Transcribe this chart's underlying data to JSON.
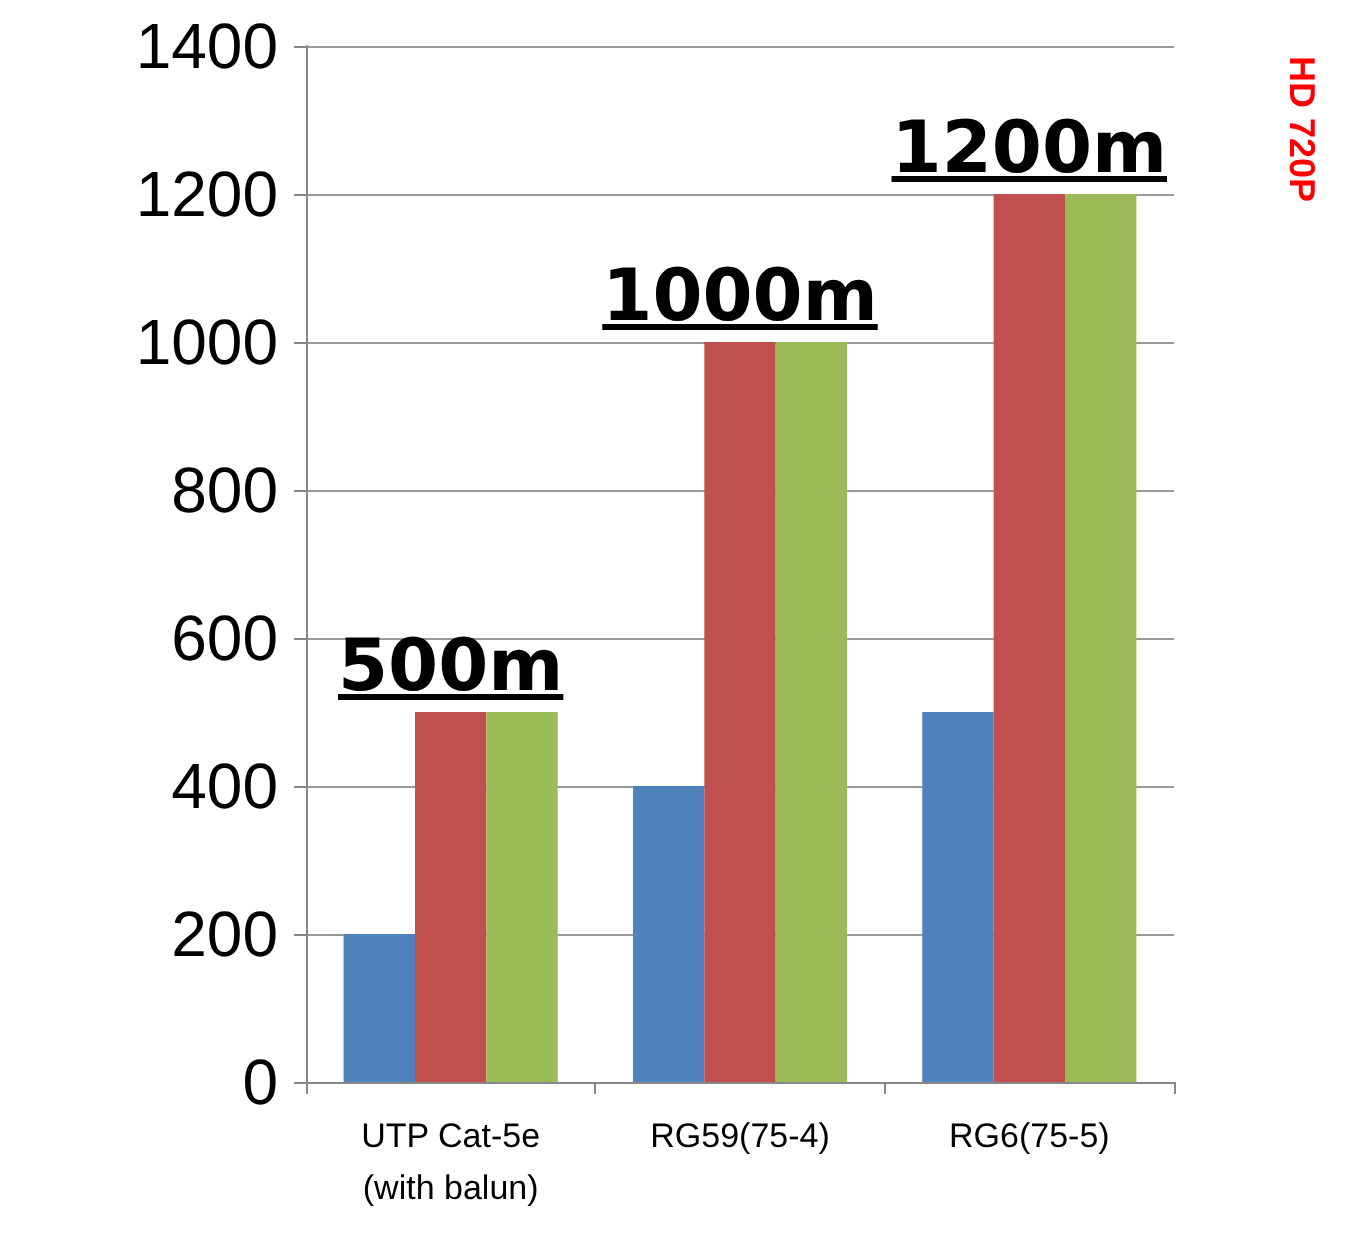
{
  "chart_data": {
    "type": "bar",
    "categories": [
      "UTP Cat-5e\n(with balun)",
      "RG59(75-4)",
      "RG6(75-5)"
    ],
    "series": [
      {
        "color": "#4f81bd",
        "values": [
          200,
          400,
          500
        ]
      },
      {
        "color": "#c0504d",
        "values": [
          500,
          1000,
          1200
        ]
      },
      {
        "color": "#9bbb59",
        "values": [
          500,
          1000,
          1200
        ]
      }
    ],
    "ylim": [
      0,
      1400
    ],
    "yticks": [
      0,
      200,
      400,
      600,
      800,
      1000,
      1200,
      1400
    ],
    "grid": "y",
    "annotations": [
      {
        "text": "500m",
        "x": "UTP Cat-5e\n(with balun)",
        "y": 500
      },
      {
        "text": "1000m",
        "x": "RG59(75-4)",
        "y": 1000
      },
      {
        "text": "1200m",
        "x": "RG6(75-5)",
        "y": 1200
      },
      "HD 720P"
    ]
  }
}
